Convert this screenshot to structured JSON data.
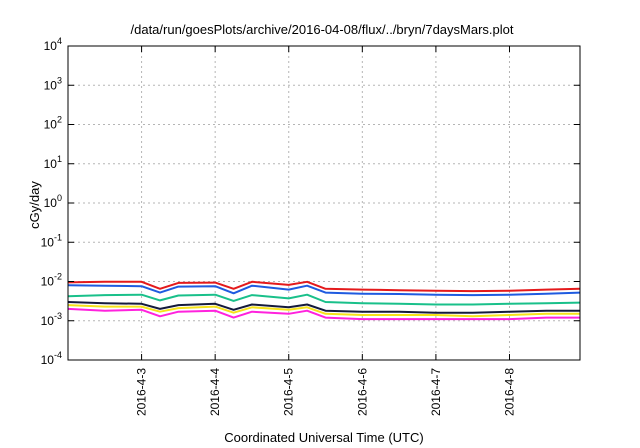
{
  "chart_data": {
    "type": "line",
    "title": "/data/run/goesPlots/archive/2016-04-08/flux/../bryn/7daysMars.plot",
    "xlabel": "Coordinated Universal Time (UTC)",
    "ylabel": "cGy/day",
    "yscale": "log",
    "ylim": [
      0.0001,
      10000
    ],
    "y_ticks": [
      {
        "value": 0.0001,
        "base": "10",
        "exp": "-4"
      },
      {
        "value": 0.001,
        "base": "10",
        "exp": "-3"
      },
      {
        "value": 0.01,
        "base": "10",
        "exp": "-2"
      },
      {
        "value": 0.1,
        "base": "10",
        "exp": "-1"
      },
      {
        "value": 1,
        "base": "10",
        "exp": "0"
      },
      {
        "value": 10,
        "base": "10",
        "exp": "1"
      },
      {
        "value": 100,
        "base": "10",
        "exp": "2"
      },
      {
        "value": 1000,
        "base": "10",
        "exp": "3"
      },
      {
        "value": 10000,
        "base": "10",
        "exp": "4"
      }
    ],
    "xlim": [
      "2016-04-02 00:00",
      "2016-04-08 23:00"
    ],
    "x_ticks": [
      {
        "label": "2016-4-3",
        "value": "2016-04-03 00:00"
      },
      {
        "label": "2016-4-4",
        "value": "2016-04-04 00:00"
      },
      {
        "label": "2016-4-5",
        "value": "2016-04-05 00:00"
      },
      {
        "label": "2016-4-6",
        "value": "2016-04-06 00:00"
      },
      {
        "label": "2016-4-7",
        "value": "2016-04-07 00:00"
      },
      {
        "label": "2016-4-8",
        "value": "2016-04-08 00:00"
      }
    ],
    "grid": true,
    "series": [
      {
        "color": "#e41a1c",
        "x": [
          "2016-04-02 00:00",
          "2016-04-02 12:00",
          "2016-04-03 00:00",
          "2016-04-03 06:00",
          "2016-04-03 12:00",
          "2016-04-04 00:00",
          "2016-04-04 06:00",
          "2016-04-04 12:00",
          "2016-04-05 00:00",
          "2016-04-05 06:00",
          "2016-04-05 12:00",
          "2016-04-06 00:00",
          "2016-04-06 12:00",
          "2016-04-07 00:00",
          "2016-04-07 12:00",
          "2016-04-08 00:00",
          "2016-04-08 12:00",
          "2016-04-08 23:00"
        ],
        "values": [
          0.0095,
          0.0098,
          0.0098,
          0.0065,
          0.0092,
          0.0094,
          0.0065,
          0.0098,
          0.0082,
          0.0098,
          0.0065,
          0.0062,
          0.006,
          0.0058,
          0.0057,
          0.0058,
          0.0062,
          0.0065
        ]
      },
      {
        "color": "#1f5be0",
        "x": [
          "2016-04-02 00:00",
          "2016-04-02 12:00",
          "2016-04-03 00:00",
          "2016-04-03 06:00",
          "2016-04-03 12:00",
          "2016-04-04 00:00",
          "2016-04-04 06:00",
          "2016-04-04 12:00",
          "2016-04-05 00:00",
          "2016-04-05 06:00",
          "2016-04-05 12:00",
          "2016-04-06 00:00",
          "2016-04-06 12:00",
          "2016-04-07 00:00",
          "2016-04-07 12:00",
          "2016-04-08 00:00",
          "2016-04-08 12:00",
          "2016-04-08 23:00"
        ],
        "values": [
          0.008,
          0.0078,
          0.0076,
          0.0052,
          0.0074,
          0.0076,
          0.005,
          0.0078,
          0.0062,
          0.0078,
          0.0052,
          0.0049,
          0.0048,
          0.0046,
          0.0045,
          0.0046,
          0.0049,
          0.0052
        ]
      },
      {
        "color": "#19c08a",
        "x": [
          "2016-04-02 00:00",
          "2016-04-02 12:00",
          "2016-04-03 00:00",
          "2016-04-03 06:00",
          "2016-04-03 12:00",
          "2016-04-04 00:00",
          "2016-04-04 06:00",
          "2016-04-04 12:00",
          "2016-04-05 00:00",
          "2016-04-05 06:00",
          "2016-04-05 12:00",
          "2016-04-06 00:00",
          "2016-04-06 12:00",
          "2016-04-07 00:00",
          "2016-04-07 12:00",
          "2016-04-08 00:00",
          "2016-04-08 12:00",
          "2016-04-08 23:00"
        ],
        "values": [
          0.0042,
          0.0045,
          0.0046,
          0.0033,
          0.0044,
          0.0046,
          0.0032,
          0.0045,
          0.0037,
          0.0046,
          0.003,
          0.0028,
          0.0027,
          0.0026,
          0.0026,
          0.0027,
          0.0028,
          0.0029
        ]
      },
      {
        "color": "#141a3c",
        "x": [
          "2016-04-02 00:00",
          "2016-04-02 12:00",
          "2016-04-03 00:00",
          "2016-04-03 06:00",
          "2016-04-03 12:00",
          "2016-04-04 00:00",
          "2016-04-04 06:00",
          "2016-04-04 12:00",
          "2016-04-05 00:00",
          "2016-04-05 06:00",
          "2016-04-05 12:00",
          "2016-04-06 00:00",
          "2016-04-06 12:00",
          "2016-04-07 00:00",
          "2016-04-07 12:00",
          "2016-04-08 00:00",
          "2016-04-08 12:00",
          "2016-04-08 23:00"
        ],
        "values": [
          0.003,
          0.0028,
          0.0027,
          0.002,
          0.0025,
          0.0027,
          0.0019,
          0.0026,
          0.0022,
          0.0026,
          0.0018,
          0.0017,
          0.0017,
          0.0016,
          0.0016,
          0.0017,
          0.0018,
          0.0018
        ]
      },
      {
        "color": "#f6e31a",
        "x": [
          "2016-04-02 00:00",
          "2016-04-02 12:00",
          "2016-04-03 00:00",
          "2016-04-03 06:00",
          "2016-04-03 12:00",
          "2016-04-04 00:00",
          "2016-04-04 06:00",
          "2016-04-04 12:00",
          "2016-04-05 00:00",
          "2016-04-05 06:00",
          "2016-04-05 12:00",
          "2016-04-06 00:00",
          "2016-04-06 12:00",
          "2016-04-07 00:00",
          "2016-04-07 12:00",
          "2016-04-08 00:00",
          "2016-04-08 12:00",
          "2016-04-08 23:00"
        ],
        "values": [
          0.0025,
          0.0023,
          0.0023,
          0.0017,
          0.0021,
          0.0023,
          0.0016,
          0.0022,
          0.0019,
          0.0022,
          0.0015,
          0.0014,
          0.0014,
          0.0014,
          0.0013,
          0.0014,
          0.0015,
          0.0015
        ]
      },
      {
        "color": "#ff22dd",
        "x": [
          "2016-04-02 00:00",
          "2016-04-02 12:00",
          "2016-04-03 00:00",
          "2016-04-03 06:00",
          "2016-04-03 12:00",
          "2016-04-04 00:00",
          "2016-04-04 06:00",
          "2016-04-04 12:00",
          "2016-04-05 00:00",
          "2016-04-05 06:00",
          "2016-04-05 12:00",
          "2016-04-06 00:00",
          "2016-04-06 12:00",
          "2016-04-07 00:00",
          "2016-04-07 12:00",
          "2016-04-08 00:00",
          "2016-04-08 12:00",
          "2016-04-08 23:00"
        ],
        "values": [
          0.002,
          0.0018,
          0.0019,
          0.0013,
          0.0017,
          0.0018,
          0.0012,
          0.0017,
          0.0015,
          0.0018,
          0.0012,
          0.0011,
          0.0011,
          0.0011,
          0.0011,
          0.0011,
          0.0012,
          0.0012
        ]
      }
    ]
  }
}
